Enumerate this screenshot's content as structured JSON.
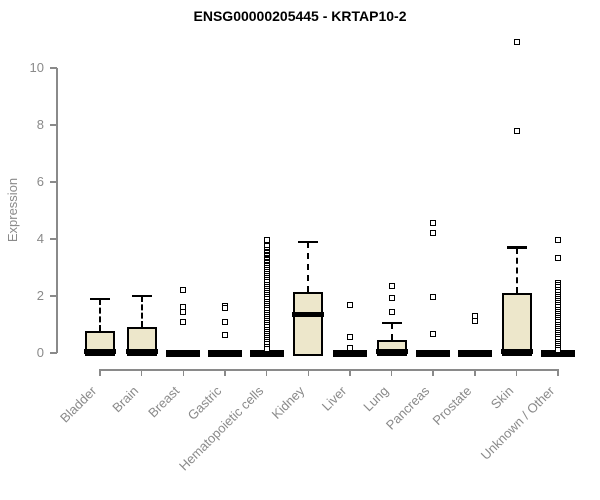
{
  "chart_data": {
    "type": "boxplot",
    "title": "ENSG00000205445 - KRTAP10-2",
    "ylabel": "Expression",
    "xlabel": "",
    "yticks": [
      0,
      2,
      4,
      6,
      8,
      10
    ],
    "ylim": [
      0,
      11.2
    ],
    "grid": false,
    "legend": "none",
    "colors": {
      "box_fill": "#ede7cb",
      "box_line": "#000000",
      "axis": "#8a8a8a",
      "title": "#000000"
    },
    "categories": [
      "Bladder",
      "Brain",
      "Breast",
      "Gastric",
      "Hematopoietic cells",
      "Kidney",
      "Liver",
      "Lung",
      "Pancreas",
      "Prostate",
      "Skin",
      "Unknown / Other"
    ],
    "series": [
      {
        "category": "Bladder",
        "q1": 0,
        "median": 0.05,
        "q3": 0.78,
        "whisker_low": 0,
        "whisker_high": 1.9,
        "outliers": []
      },
      {
        "category": "Brain",
        "q1": 0,
        "median": 0.05,
        "q3": 0.9,
        "whisker_low": 0,
        "whisker_high": 2.0,
        "outliers": []
      },
      {
        "category": "Breast",
        "q1": 0,
        "median": 0,
        "q3": 0,
        "whisker_low": 0,
        "whisker_high": 0,
        "outliers": [
          2.2,
          1.6,
          1.45,
          1.1
        ]
      },
      {
        "category": "Gastric",
        "q1": 0,
        "median": 0,
        "q3": 0,
        "whisker_low": 0,
        "whisker_high": 0,
        "outliers": [
          1.65,
          1.58,
          1.1,
          0.63
        ]
      },
      {
        "category": "Hematopoietic cells",
        "q1": 0,
        "median": 0,
        "q3": 0,
        "whisker_low": 0,
        "whisker_high": 0,
        "outliers": [
          3.95,
          3.75,
          3.62,
          3.55,
          3.5,
          3.45,
          3.4,
          3.35,
          3.3,
          3.25,
          3.2,
          3.15,
          3.1,
          3.05,
          3.0,
          2.92,
          2.85,
          2.78,
          2.7,
          2.62,
          2.55,
          2.48,
          2.4,
          2.32,
          2.25,
          2.18,
          2.1,
          2.02,
          1.95,
          1.88,
          1.8,
          1.72,
          1.65,
          1.58,
          1.5,
          1.42,
          1.35,
          1.28,
          1.2,
          1.12,
          1.05,
          0.98,
          0.9,
          0.82,
          0.75,
          0.68,
          0.6,
          0.52,
          0.45,
          0.38,
          0.3,
          0.22,
          0.15
        ]
      },
      {
        "category": "Kidney",
        "q1": 0,
        "median": 1.35,
        "q3": 2.15,
        "whisker_low": 0,
        "whisker_high": 3.9,
        "outliers": []
      },
      {
        "category": "Liver",
        "q1": 0,
        "median": 0,
        "q3": 0,
        "whisker_low": 0,
        "whisker_high": 0,
        "outliers": [
          1.7,
          0.55,
          0.18
        ]
      },
      {
        "category": "Lung",
        "q1": 0,
        "median": 0.05,
        "q3": 0.45,
        "whisker_low": 0,
        "whisker_high": 1.05,
        "outliers": [
          2.35,
          1.93,
          1.45
        ]
      },
      {
        "category": "Pancreas",
        "q1": 0,
        "median": 0,
        "q3": 0,
        "whisker_low": 0,
        "whisker_high": 0,
        "outliers": [
          4.55,
          4.2,
          1.95,
          0.65
        ]
      },
      {
        "category": "Prostate",
        "q1": 0,
        "median": 0,
        "q3": 0,
        "whisker_low": 0,
        "whisker_high": 0,
        "outliers": [
          1.3,
          1.12
        ]
      },
      {
        "category": "Skin",
        "q1": 0,
        "median": 0.05,
        "q3": 2.1,
        "whisker_low": 0,
        "whisker_high": 3.7,
        "outliers": [
          7.8,
          10.9
        ]
      },
      {
        "category": "Unknown / Other",
        "q1": 0,
        "median": 0,
        "q3": 0,
        "whisker_low": 0,
        "whisker_high": 0,
        "outliers": [
          3.95,
          3.33,
          2.45,
          2.38,
          2.3,
          2.22,
          2.15,
          2.05,
          1.97,
          1.9,
          1.82,
          1.75,
          1.68,
          1.6,
          1.52,
          1.45,
          1.38,
          1.3,
          1.22,
          1.15,
          1.08,
          1.0,
          0.92,
          0.85,
          0.78,
          0.7,
          0.62,
          0.55,
          0.48,
          0.4,
          0.32,
          0.25,
          0.18,
          0.1
        ]
      }
    ]
  }
}
